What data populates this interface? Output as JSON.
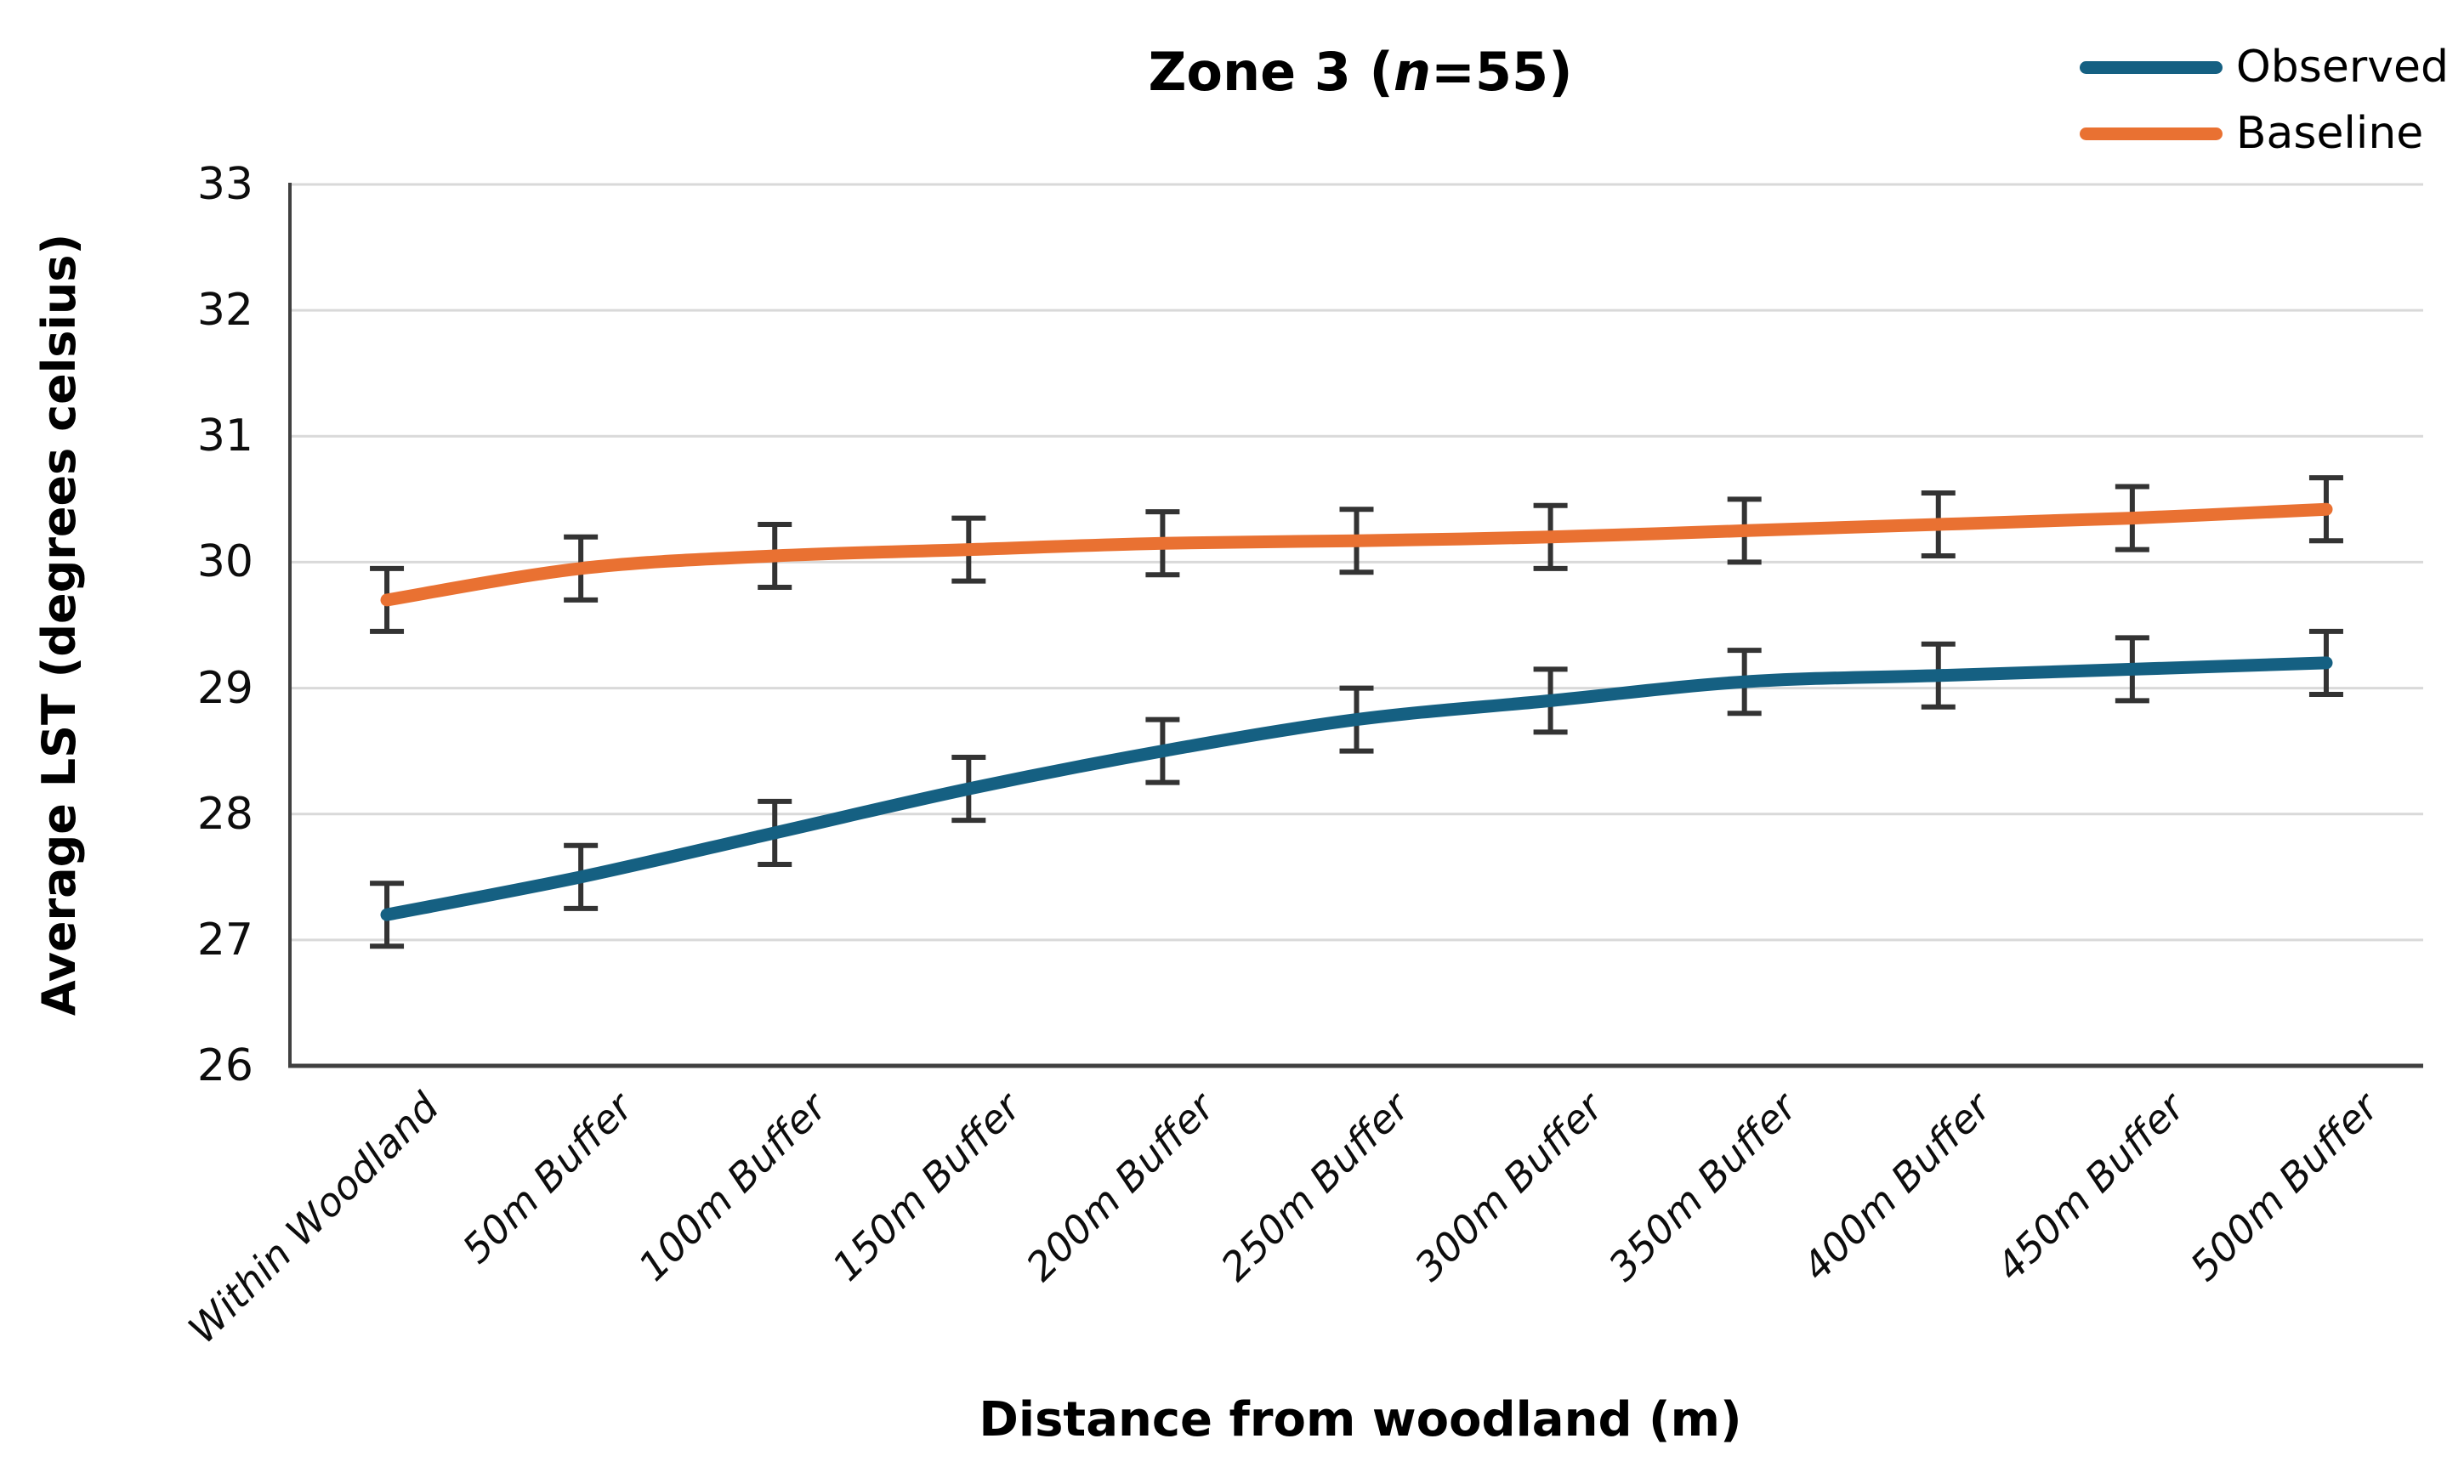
{
  "title": {
    "prefix": "Zone 3 (",
    "italic_n": "n",
    "suffix": "=55)",
    "full": "Zone 3 (n=55)"
  },
  "axes": {
    "y_title": "Average LST (degrees celsius)",
    "x_title": "Distance from woodland (m)",
    "y_ticks": [
      33,
      32,
      31,
      30,
      29,
      28,
      27,
      26
    ],
    "y_min": 26,
    "y_max": 33
  },
  "colors": {
    "observed": "#156082",
    "baseline": "#E97132",
    "gridline": "#D9D9D9",
    "axis_line": "#404040",
    "error_bar": "#333333",
    "text": "#000000",
    "background": "#FFFFFF"
  },
  "chart_data": {
    "type": "line",
    "title": "Zone 3 (n=55)",
    "xlabel": "Distance from woodland (m)",
    "ylabel": "Average LST (degrees celsius)",
    "ylim": [
      26,
      33
    ],
    "grid": true,
    "legend_position": "top-right",
    "smoothed_lines": true,
    "error_bars": true,
    "categories": [
      "Within Woodland",
      "50m Buffer",
      "100m Buffer",
      "150m Buffer",
      "200m Buffer",
      "250m Buffer",
      "300m Buffer",
      "350m Buffer",
      "400m Buffer",
      "450m Buffer",
      "500m Buffer"
    ],
    "series": [
      {
        "name": "Observed",
        "color": "#156082",
        "values": [
          27.2,
          27.5,
          27.85,
          28.2,
          28.5,
          28.75,
          28.9,
          29.05,
          29.1,
          29.15,
          29.2
        ],
        "error": 0.25
      },
      {
        "name": "Baseline",
        "color": "#E97132",
        "values": [
          29.7,
          29.95,
          30.05,
          30.1,
          30.15,
          30.17,
          30.2,
          30.25,
          30.3,
          30.35,
          30.42
        ],
        "error": 0.25
      }
    ]
  }
}
